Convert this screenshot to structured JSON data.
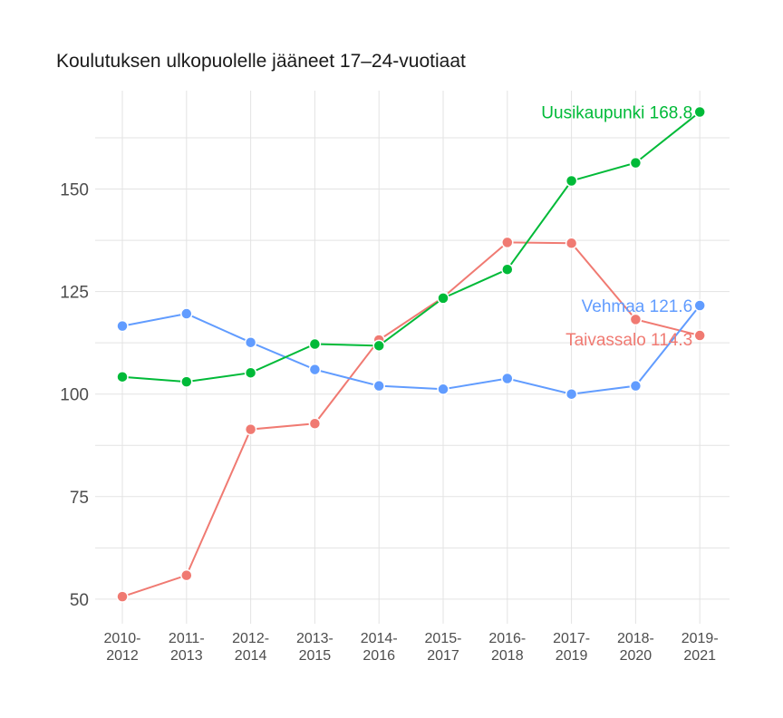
{
  "chart_data": {
    "type": "line",
    "title": "Koulutuksen ulkopuolelle jääneet 17–24-vuotiaat",
    "xlabel": "",
    "ylabel": "",
    "categories": [
      "2010-2012",
      "2011-2013",
      "2012-2014",
      "2013-2015",
      "2014-2016",
      "2015-2017",
      "2016-2018",
      "2017-2019",
      "2018-2020",
      "2019-2021"
    ],
    "category_labels": [
      [
        "2010-",
        "2012"
      ],
      [
        "2011-",
        "2013"
      ],
      [
        "2012-",
        "2014"
      ],
      [
        "2013-",
        "2015"
      ],
      [
        "2014-",
        "2016"
      ],
      [
        "2015-",
        "2017"
      ],
      [
        "2016-",
        "2018"
      ],
      [
        "2017-",
        "2019"
      ],
      [
        "2018-",
        "2020"
      ],
      [
        "2019-",
        "2021"
      ]
    ],
    "ylim": [
      44,
      174
    ],
    "yticks": [
      50,
      75,
      100,
      125,
      150
    ],
    "grid": true,
    "legend": "none",
    "series": [
      {
        "name": "Taivassalo",
        "color": "#F07A72",
        "values": [
          50.6,
          55.8,
          91.4,
          92.8,
          113.2,
          123.6,
          137.0,
          136.8,
          118.2,
          114.3
        ],
        "end_label": "Taivassalo 114.3"
      },
      {
        "name": "Vehmaa",
        "color": "#619CFF",
        "values": [
          116.6,
          119.6,
          112.6,
          106.0,
          102.0,
          101.2,
          103.8,
          100.0,
          102.0,
          121.6
        ],
        "end_label": "Vehmaa 121.6"
      },
      {
        "name": "Uusikaupunki",
        "color": "#00BA38",
        "values": [
          104.2,
          103.0,
          105.2,
          112.2,
          111.8,
          123.4,
          130.4,
          152.0,
          156.4,
          168.8
        ],
        "end_label": "Uusikaupunki 168.8"
      }
    ]
  }
}
